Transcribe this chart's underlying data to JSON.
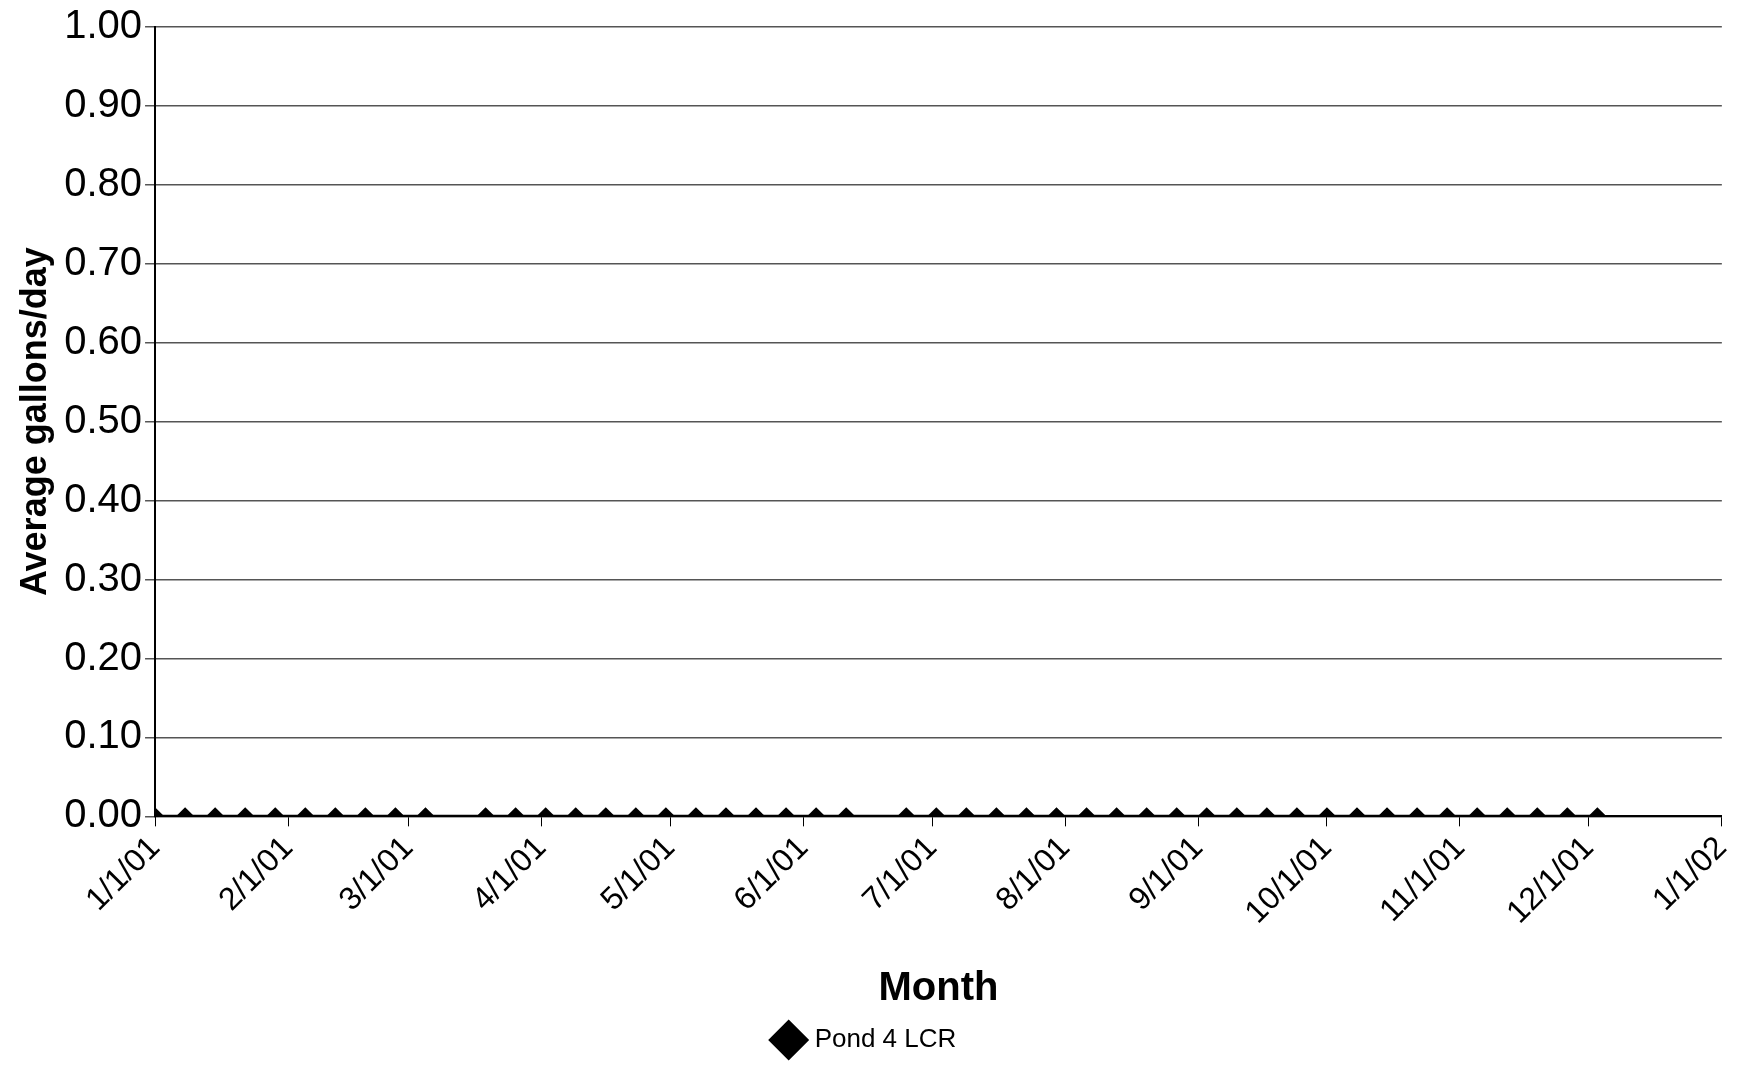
{
  "chart_data": {
    "type": "line",
    "xlabel": "Month",
    "ylabel": "Average gallons/day",
    "xlim": [
      "2001-01-01",
      "2002-01-01"
    ],
    "xticks": [
      {
        "value": "2001-01-01",
        "label": "1/1/01"
      },
      {
        "value": "2001-02-01",
        "label": "2/1/01"
      },
      {
        "value": "2001-03-01",
        "label": "3/1/01"
      },
      {
        "value": "2001-04-01",
        "label": "4/1/01"
      },
      {
        "value": "2001-05-01",
        "label": "5/1/01"
      },
      {
        "value": "2001-06-01",
        "label": "6/1/01"
      },
      {
        "value": "2001-07-01",
        "label": "7/1/01"
      },
      {
        "value": "2001-08-01",
        "label": "8/1/01"
      },
      {
        "value": "2001-09-01",
        "label": "9/1/01"
      },
      {
        "value": "2001-10-01",
        "label": "10/1/01"
      },
      {
        "value": "2001-11-01",
        "label": "11/1/01"
      },
      {
        "value": "2001-12-01",
        "label": "12/1/01"
      },
      {
        "value": "2002-01-01",
        "label": "1/1/02"
      }
    ],
    "ylim": [
      0,
      1
    ],
    "yticks": [
      {
        "value": 0,
        "label": "0.00"
      },
      {
        "value": 0.1,
        "label": "0.10"
      },
      {
        "value": 0.2,
        "label": "0.20"
      },
      {
        "value": 0.3,
        "label": "0.30"
      },
      {
        "value": 0.4,
        "label": "0.40"
      },
      {
        "value": 0.5,
        "label": "0.50"
      },
      {
        "value": 0.6,
        "label": "0.60"
      },
      {
        "value": 0.7,
        "label": "0.70"
      },
      {
        "value": 0.8,
        "label": "0.80"
      },
      {
        "value": 0.9,
        "label": "0.90"
      },
      {
        "value": 1,
        "label": "1.00"
      }
    ],
    "grid": "y",
    "legend": "bottom",
    "marker": "diamond",
    "line_style": "solid",
    "series": [
      {
        "name": "Pond 4 LCR",
        "color": "#000000",
        "x": [
          "2001-01-01",
          "2001-01-08",
          "2001-01-15",
          "2001-01-22",
          "2001-01-29",
          "2001-02-05",
          "2001-02-12",
          "2001-02-19",
          "2001-02-26",
          "2001-03-05",
          "2001-03-19",
          "2001-03-26",
          "2001-04-02",
          "2001-04-09",
          "2001-04-16",
          "2001-04-23",
          "2001-04-30",
          "2001-05-07",
          "2001-05-14",
          "2001-05-21",
          "2001-05-28",
          "2001-06-04",
          "2001-06-11",
          "2001-06-25",
          "2001-07-02",
          "2001-07-09",
          "2001-07-16",
          "2001-07-23",
          "2001-07-30",
          "2001-08-06",
          "2001-08-13",
          "2001-08-20",
          "2001-08-27",
          "2001-09-03",
          "2001-09-10",
          "2001-09-17",
          "2001-09-24",
          "2001-10-01",
          "2001-10-08",
          "2001-10-15",
          "2001-10-22",
          "2001-10-29",
          "2001-11-05",
          "2001-11-12",
          "2001-11-19",
          "2001-11-26",
          "2001-12-03"
        ],
        "values": [
          0,
          0,
          0,
          0,
          0,
          0,
          0,
          0,
          0,
          0,
          0,
          0,
          0,
          0,
          0,
          0,
          0,
          0,
          0,
          0,
          0,
          0,
          0,
          0,
          0,
          0,
          0,
          0,
          0,
          0,
          0,
          0,
          0,
          0,
          0,
          0,
          0,
          0,
          0,
          0,
          0,
          0,
          0,
          0,
          0,
          0,
          0
        ]
      }
    ]
  }
}
